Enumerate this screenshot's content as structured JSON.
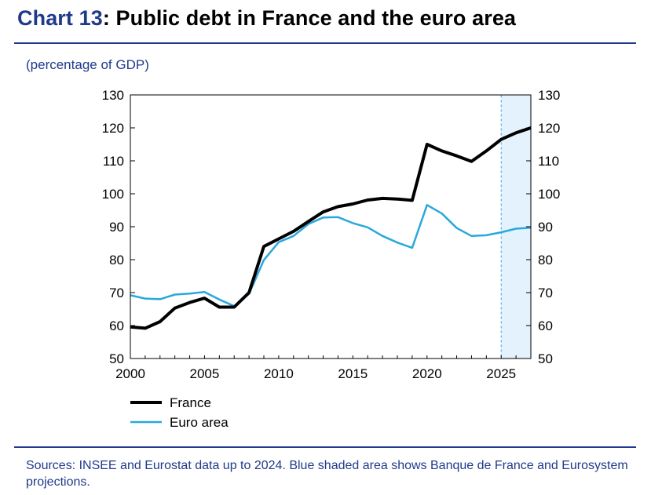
{
  "header": {
    "title_prefix": "Chart 13",
    "title_rest": ": Public debt in France and the euro area",
    "unit_label": "(percentage of GDP)"
  },
  "footer": {
    "sources": "Sources: INSEE and Eurostat data up to 2024. Blue shaded area shows Banque de France and Eurosystem projections."
  },
  "colors": {
    "title_accent": "#1f3a8c",
    "france": "#000000",
    "euro_area": "#29a8dc",
    "projection_fill": "#e3f2fc",
    "projection_border": "#29a8dc"
  },
  "chart_data": {
    "type": "line",
    "title": "Public debt in France and the euro area",
    "ylabel": "percentage of GDP",
    "xlim": [
      2000,
      2027
    ],
    "ylim": [
      50,
      130
    ],
    "x_ticks": [
      2000,
      2005,
      2010,
      2015,
      2020,
      2025
    ],
    "y_ticks": [
      50,
      60,
      70,
      80,
      90,
      100,
      110,
      120,
      130
    ],
    "grid": false,
    "dual_y_axis": true,
    "projection_range": [
      2025,
      2027
    ],
    "x": [
      2000,
      2001,
      2002,
      2003,
      2004,
      2005,
      2006,
      2007,
      2008,
      2009,
      2010,
      2011,
      2012,
      2013,
      2014,
      2015,
      2016,
      2017,
      2018,
      2019,
      2020,
      2021,
      2022,
      2023,
      2024,
      2025,
      2026,
      2027
    ],
    "series": [
      {
        "name": "France",
        "color": "#000000",
        "values": [
          59.6,
          59.2,
          61.2,
          65.3,
          67.0,
          68.3,
          65.6,
          65.6,
          70.0,
          84.0,
          86.3,
          88.6,
          91.6,
          94.5,
          96.1,
          96.9,
          98.1,
          98.6,
          98.4,
          98.0,
          115.0,
          113.0,
          111.5,
          109.8,
          113.0,
          116.5,
          118.5,
          120.0
        ]
      },
      {
        "name": "Euro area",
        "color": "#29a8dc",
        "values": [
          69.2,
          68.2,
          68.0,
          69.4,
          69.7,
          70.2,
          67.9,
          65.9,
          69.6,
          79.9,
          85.3,
          87.2,
          90.8,
          92.8,
          92.9,
          91.1,
          89.8,
          87.2,
          85.2,
          83.6,
          96.6,
          94.0,
          89.6,
          87.2,
          87.4,
          88.3,
          89.4,
          89.7
        ]
      }
    ],
    "legend": {
      "placement": "bottom-left",
      "entries": [
        "France",
        "Euro area"
      ]
    }
  }
}
